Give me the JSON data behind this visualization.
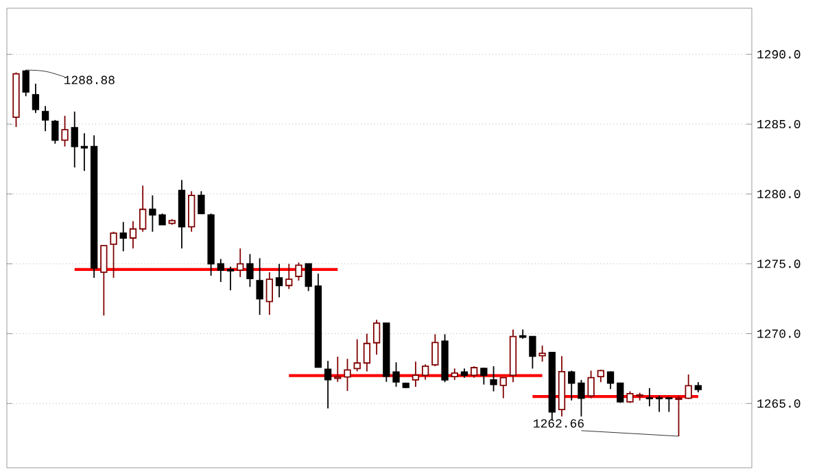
{
  "chart_data": {
    "type": "candlestick",
    "categories": [
      null,
      null,
      null,
      null,
      null,
      null,
      null,
      null,
      null,
      null,
      null,
      null,
      null,
      null,
      null,
      null,
      null,
      null,
      null,
      null,
      null,
      null,
      null,
      null,
      null,
      null,
      null,
      null,
      null,
      null,
      null,
      null,
      null,
      null,
      null,
      null,
      null,
      null,
      null,
      null,
      null,
      null,
      null,
      null,
      null,
      null,
      null,
      null,
      null,
      null,
      null,
      null,
      null,
      null,
      null,
      null,
      null,
      null,
      null,
      null,
      null,
      null,
      null,
      null,
      null,
      null,
      null,
      null,
      null,
      null,
      null
    ],
    "series": [
      {
        "type": "candlestick",
        "ohlc": [
          [
            1285.5,
            1288.7,
            1284.8,
            1288.6
          ],
          [
            1288.8,
            1288.88,
            1287.0,
            1287.3
          ],
          [
            1287.1,
            1287.9,
            1285.8,
            1286.05
          ],
          [
            1285.9,
            1286.3,
            1284.5,
            1285.3
          ],
          [
            1285.2,
            1285.3,
            1283.6,
            1283.85
          ],
          [
            1283.85,
            1285.6,
            1283.4,
            1284.6
          ],
          [
            1284.75,
            1285.9,
            1281.9,
            1283.4
          ],
          [
            1283.4,
            1284.35,
            1281.65,
            1283.3
          ],
          [
            1283.4,
            1284.2,
            1274.0,
            1274.7
          ],
          [
            1274.4,
            1276.3,
            1271.3,
            1276.3
          ],
          [
            1276.4,
            1277.3,
            1274.0,
            1277.2
          ],
          [
            1277.2,
            1278.0,
            1275.9,
            1276.85
          ],
          [
            1276.85,
            1278.05,
            1276.1,
            1277.5
          ],
          [
            1277.5,
            1280.6,
            1277.3,
            1278.9
          ],
          [
            1278.9,
            1279.9,
            1277.3,
            1278.5
          ],
          [
            1278.5,
            1278.6,
            1277.8,
            1277.8
          ],
          [
            1277.9,
            1278.2,
            1277.8,
            1278.1
          ],
          [
            1280.25,
            1281.0,
            1276.1,
            1277.65
          ],
          [
            1277.65,
            1280.2,
            1277.3,
            1279.9
          ],
          [
            1279.9,
            1280.2,
            1278.6,
            1278.6
          ],
          [
            1278.5,
            1278.6,
            1274.15,
            1275.0
          ],
          [
            1275.0,
            1275.35,
            1273.7,
            1274.55
          ],
          [
            1274.6,
            1274.8,
            1273.1,
            1274.5
          ],
          [
            1274.55,
            1276.1,
            1274.05,
            1275.0
          ],
          [
            1275.0,
            1275.7,
            1273.35,
            1273.95
          ],
          [
            1273.8,
            1275.4,
            1271.35,
            1272.5
          ],
          [
            1272.3,
            1274.4,
            1271.35,
            1273.9
          ],
          [
            1274.0,
            1275.0,
            1272.6,
            1273.45
          ],
          [
            1273.45,
            1275.0,
            1273.2,
            1273.9
          ],
          [
            1274.1,
            1275.1,
            1273.8,
            1274.9
          ],
          [
            1275.0,
            1275.0,
            1273.05,
            1273.4
          ],
          [
            1273.4,
            1274.3,
            1267.6,
            1267.6
          ],
          [
            1267.45,
            1268.05,
            1264.65,
            1266.7
          ],
          [
            1266.8,
            1268.35,
            1266.55,
            1266.9
          ],
          [
            1266.9,
            1268.2,
            1265.9,
            1267.4
          ],
          [
            1267.5,
            1269.6,
            1267.3,
            1267.9
          ],
          [
            1267.9,
            1270.0,
            1267.3,
            1269.3
          ],
          [
            1269.35,
            1271.0,
            1268.5,
            1270.75
          ],
          [
            1270.75,
            1270.75,
            1266.55,
            1266.95
          ],
          [
            1267.25,
            1267.95,
            1266.2,
            1266.55
          ],
          [
            1266.45,
            1266.5,
            1266.1,
            1266.15
          ],
          [
            1266.69,
            1268.0,
            1266.2,
            1267.02
          ],
          [
            1267.02,
            1267.8,
            1266.7,
            1267.67
          ],
          [
            1267.77,
            1269.96,
            1267.67,
            1269.37
          ],
          [
            1269.47,
            1269.96,
            1266.53,
            1266.69
          ],
          [
            1266.92,
            1267.51,
            1266.69,
            1267.18
          ],
          [
            1267.25,
            1267.51,
            1266.85,
            1267.02
          ],
          [
            1267.02,
            1267.67,
            1266.85,
            1267.57
          ],
          [
            1267.51,
            1267.57,
            1266.36,
            1267.02
          ],
          [
            1266.69,
            1267.67,
            1265.87,
            1266.36
          ],
          [
            1266.3,
            1266.85,
            1265.38,
            1266.85
          ],
          [
            1267.02,
            1270.3,
            1266.53,
            1269.8
          ],
          [
            1269.85,
            1270.3,
            1269.64,
            1269.75
          ],
          [
            1269.8,
            1269.8,
            1267.5,
            1268.39
          ],
          [
            1268.42,
            1269.15,
            1268.0,
            1268.59
          ],
          [
            1268.65,
            1268.65,
            1263.8,
            1264.4
          ],
          [
            1264.57,
            1268.39,
            1264.07,
            1267.28
          ],
          [
            1267.25,
            1267.35,
            1265.22,
            1266.46
          ],
          [
            1266.46,
            1266.69,
            1264.07,
            1265.38
          ],
          [
            1265.55,
            1267.35,
            1265.38,
            1266.85
          ],
          [
            1266.92,
            1267.41,
            1266.53,
            1267.35
          ],
          [
            1267.25,
            1267.3,
            1266.04,
            1266.46
          ],
          [
            1266.46,
            1266.46,
            1265.05,
            1265.12
          ],
          [
            1265.12,
            1265.87,
            1265.05,
            1265.71
          ],
          [
            1265.55,
            1265.77,
            1265.22,
            1265.61
          ],
          [
            1265.4,
            1266.1,
            1264.8,
            1265.35
          ],
          [
            1265.4,
            1265.55,
            1264.4,
            1265.35
          ],
          [
            1265.4,
            1265.45,
            1264.4,
            1265.35
          ],
          [
            1265.3,
            1265.55,
            1262.66,
            1265.38
          ],
          [
            1265.38,
            1267.08,
            1265.32,
            1266.27
          ],
          [
            1266.27,
            1266.53,
            1265.8,
            1266.0
          ]
        ],
        "colors": [
          "#800000",
          "#000000",
          "#000000",
          "#000000",
          "#000000",
          "#800000",
          "#000000",
          "#000000",
          "#000000",
          "#800000",
          "#800000",
          "#000000",
          "#800000",
          "#800000",
          "#000000",
          "#000000",
          "#800000",
          "#000000",
          "#800000",
          "#000000",
          "#000000",
          "#000000",
          "#000000",
          "#800000",
          "#000000",
          "#000000",
          "#800000",
          "#000000",
          "#800000",
          "#800000",
          "#000000",
          "#000000",
          "#000000",
          "#800000",
          "#800000",
          "#800000",
          "#800000",
          "#800000",
          "#000000",
          "#000000",
          "#000000",
          "#800000",
          "#800000",
          "#800000",
          "#000000",
          "#800000",
          "#000000",
          "#800000",
          "#000000",
          "#000000",
          "#800000",
          "#800000",
          "#000000",
          "#000000",
          "#800000",
          "#000000",
          "#800000",
          "#000000",
          "#000000",
          "#800000",
          "#800000",
          "#000000",
          "#000000",
          "#800000",
          "#800000",
          "#000000",
          "#000000",
          "#000000",
          "#800000",
          "#800000",
          "#000000"
        ]
      },
      {
        "type": "line",
        "color": "#ff0000",
        "values": [
          null,
          null,
          null,
          null,
          null,
          null,
          1274.6,
          1274.6,
          1274.6,
          1274.6,
          1274.6,
          1274.6,
          1274.6,
          1274.6,
          1274.6,
          1274.6,
          1274.6,
          1274.6,
          1274.6,
          1274.6,
          1274.6,
          1274.6,
          1274.6,
          1274.6,
          1274.6,
          1274.6,
          1274.6,
          1274.6,
          1274.6,
          1274.6,
          1274.6,
          1274.6,
          1274.6,
          1274.6,
          null,
          null,
          null,
          null,
          null,
          null,
          null,
          null,
          null,
          null,
          null,
          null,
          null,
          null,
          null,
          null,
          null,
          null,
          null,
          null,
          null,
          null,
          null,
          null,
          null,
          null,
          null,
          null,
          null,
          null,
          null,
          null,
          null,
          null,
          null,
          null,
          null
        ]
      },
      {
        "type": "line",
        "color": "#ff0000",
        "values": [
          null,
          null,
          null,
          null,
          null,
          null,
          null,
          null,
          null,
          null,
          null,
          null,
          null,
          null,
          null,
          null,
          null,
          null,
          null,
          null,
          null,
          null,
          null,
          null,
          null,
          null,
          null,
          null,
          1267.0,
          1267.0,
          1267.0,
          1267.0,
          1267.0,
          1267.0,
          1267.0,
          1267.0,
          1267.0,
          1267.0,
          1267.0,
          1267.0,
          1267.0,
          1267.0,
          1267.0,
          1267.0,
          1267.0,
          1267.0,
          1267.0,
          1267.0,
          1267.0,
          1267.0,
          1267.0,
          1267.0,
          1267.0,
          1267.0,
          1267.0,
          null,
          null,
          null,
          null,
          null,
          null,
          null,
          null,
          null,
          null,
          null,
          null,
          null,
          null,
          null,
          null
        ]
      },
      {
        "type": "line",
        "color": "#ff0000",
        "values": [
          null,
          null,
          null,
          null,
          null,
          null,
          null,
          null,
          null,
          null,
          null,
          null,
          null,
          null,
          null,
          null,
          null,
          null,
          null,
          null,
          null,
          null,
          null,
          null,
          null,
          null,
          null,
          null,
          null,
          null,
          null,
          null,
          null,
          null,
          null,
          null,
          null,
          null,
          null,
          null,
          null,
          null,
          null,
          null,
          null,
          null,
          null,
          null,
          null,
          null,
          null,
          null,
          null,
          1265.5,
          1265.5,
          1265.5,
          1265.5,
          1265.5,
          1265.5,
          1265.5,
          1265.5,
          1265.5,
          1265.5,
          1265.5,
          1265.5,
          1265.5,
          1265.5,
          1265.5,
          1265.5,
          1265.5,
          1265.5
        ]
      }
    ],
    "ylim": [
      1260.4,
      1293.3
    ],
    "yticks": [
      {
        "value": 1265,
        "label": "1265.0"
      },
      {
        "value": 1270,
        "label": "1270.0"
      },
      {
        "value": 1275,
        "label": "1275.0"
      },
      {
        "value": 1280,
        "label": "1280.0"
      },
      {
        "value": 1285,
        "label": "1285.0"
      },
      {
        "value": 1290,
        "label": "1290.0"
      }
    ],
    "grid": "y",
    "tick_labels": "y",
    "annotations": [
      "1288.88",
      "1262.66"
    ]
  }
}
